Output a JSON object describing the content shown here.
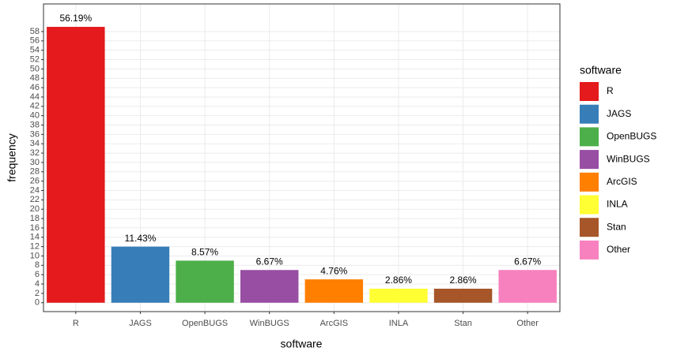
{
  "chart_data": {
    "type": "bar",
    "x_label": "software",
    "y_label": "frequency",
    "legend_title": "software",
    "categories": [
      "R",
      "JAGS",
      "OpenBUGS",
      "WinBUGS",
      "ArcGIS",
      "INLA",
      "Stan",
      "Other"
    ],
    "values": [
      59,
      12,
      9,
      7,
      5,
      3,
      3,
      7
    ],
    "bar_labels": [
      "56.19%",
      "11.43%",
      "8.57%",
      "6.67%",
      "4.76%",
      "2.86%",
      "2.86%",
      "6.67%"
    ],
    "colors": [
      "#E41A1C",
      "#377EB8",
      "#4DAF4A",
      "#984EA3",
      "#FF7F00",
      "#FFFF33",
      "#A65628",
      "#F781BF"
    ],
    "ylim": [
      -1.9,
      63.9
    ],
    "yticks": [
      0,
      2,
      4,
      6,
      8,
      10,
      12,
      14,
      16,
      18,
      20,
      22,
      24,
      26,
      28,
      30,
      32,
      34,
      36,
      38,
      40,
      42,
      44,
      46,
      48,
      50,
      52,
      54,
      56,
      58
    ],
    "grid": true,
    "legend": "right"
  }
}
